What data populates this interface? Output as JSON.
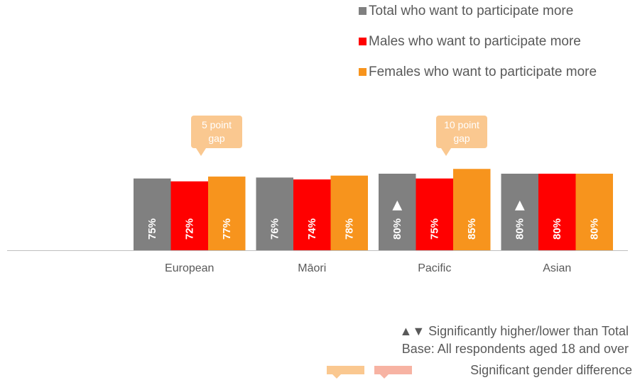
{
  "chart_data": {
    "type": "bar",
    "categories": [
      "European",
      "Māori",
      "Pacific",
      "Asian"
    ],
    "series": [
      {
        "name": "Total who want to participate more",
        "values": [
          75,
          76,
          80,
          80
        ],
        "color": "#808080"
      },
      {
        "name": "Males who want to participate more",
        "values": [
          72,
          74,
          75,
          80
        ],
        "color": "#ff0000"
      },
      {
        "name": "Females who want to participate more",
        "values": [
          77,
          78,
          85,
          80
        ],
        "color": "#f7941d"
      }
    ],
    "value_labels": [
      [
        "75%",
        "72%",
        "77%"
      ],
      [
        "76%",
        "74%",
        "78%"
      ],
      [
        "80%",
        "75%",
        "85%"
      ],
      [
        "80%",
        "80%",
        "80%"
      ]
    ],
    "significance_markers": [
      {
        "category": "Pacific",
        "series": "Total who want to participate more",
        "symbol": "▲"
      },
      {
        "category": "Asian",
        "series": "Total who want to participate more",
        "symbol": "▲"
      }
    ],
    "callouts": [
      {
        "category": "European",
        "text_line1": "5 point",
        "text_line2": "gap",
        "color": "#fac890"
      },
      {
        "category": "Pacific",
        "text_line1": "10 point",
        "text_line2": "gap",
        "color": "#fac890"
      }
    ],
    "legend_position": "top-right",
    "grid": false
  },
  "footnotes": {
    "significance": "▲▼ Significantly higher/lower than Total",
    "base": "Base: All respondents aged 18 and over",
    "gap_key": "Significant gender difference",
    "gap_key_colors": [
      "#fac890",
      "#f7b3a3"
    ]
  }
}
